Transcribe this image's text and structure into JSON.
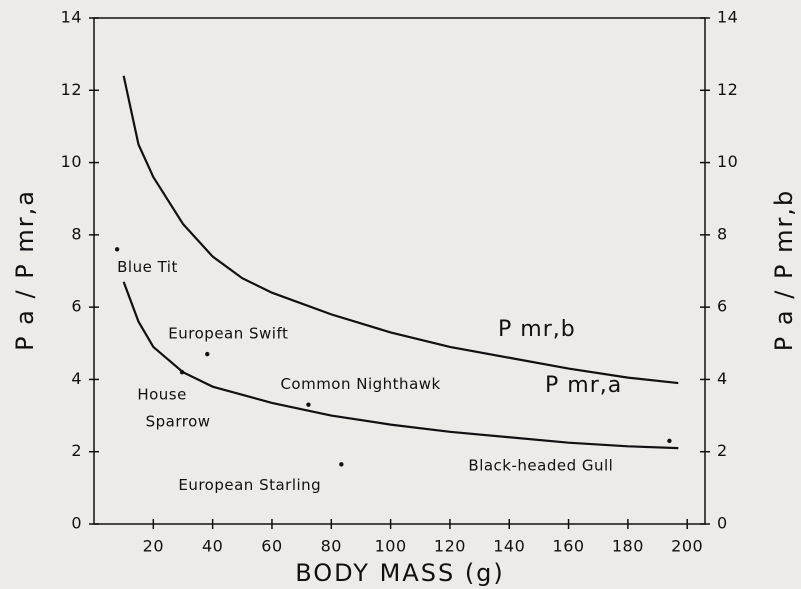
{
  "chart_data": {
    "type": "line",
    "xlabel": "BODY MASS (g)",
    "ylabel": "P a / P mr,a",
    "y2label": "P a / P mr,b",
    "xlim": [
      0,
      206
    ],
    "xticks": [
      20,
      40,
      60,
      80,
      100,
      120,
      140,
      160,
      180,
      200
    ],
    "ylim": [
      0,
      14
    ],
    "yticks": [
      0,
      2,
      4,
      6,
      8,
      10,
      12,
      14
    ],
    "y2lim": [
      0,
      14
    ],
    "y2ticks": [
      0,
      2,
      4,
      6,
      8,
      10,
      12,
      14
    ],
    "series": [
      {
        "name": "P mr,b",
        "color": "#111111",
        "axis": "y2",
        "x": [
          10,
          15,
          20,
          30,
          40,
          50,
          60,
          80,
          100,
          120,
          140,
          160,
          180,
          197
        ],
        "values": [
          12.4,
          10.5,
          9.6,
          8.3,
          7.4,
          6.8,
          6.4,
          5.8,
          5.3,
          4.9,
          4.6,
          4.3,
          4.05,
          3.9
        ]
      },
      {
        "name": "P mr,a",
        "color": "#111111",
        "x": [
          10,
          15,
          20,
          30,
          40,
          60,
          80,
          100,
          120,
          140,
          160,
          180,
          197
        ],
        "values": [
          6.7,
          5.6,
          4.9,
          4.2,
          3.8,
          3.35,
          3.0,
          2.75,
          2.55,
          2.4,
          2.25,
          2.15,
          2.1
        ]
      }
    ],
    "points": [
      {
        "lines": [
          "Blue Tit"
        ],
        "x": 7.8,
        "y": 7.6
      },
      {
        "lines": [
          "House",
          "Sparrow"
        ],
        "x": 29.7,
        "y": 4.2
      },
      {
        "lines": [
          "European Swift"
        ],
        "x": 38.2,
        "y": 4.7
      },
      {
        "lines": [
          "Common Nighthawk"
        ],
        "x": 72.3,
        "y": 3.3
      },
      {
        "lines": [
          "European Starling"
        ],
        "x": 83.4,
        "y": 1.65
      },
      {
        "lines": [
          "Black-headed Gull"
        ],
        "x": 194,
        "y": 2.3
      }
    ]
  }
}
